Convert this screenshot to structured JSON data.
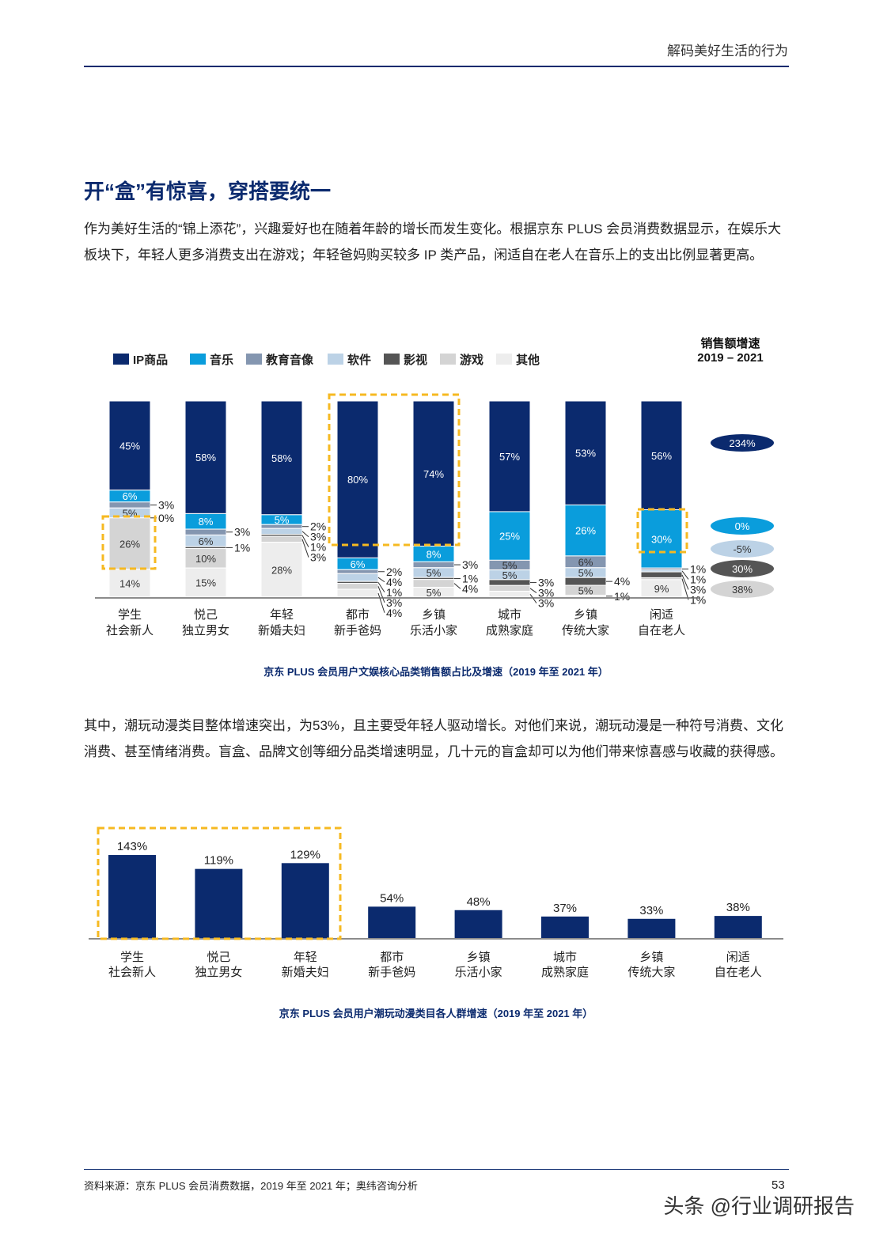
{
  "header": {
    "section": "解码美好生活的行为"
  },
  "title": "开“盒”有惊喜，穿搭要统一",
  "paragraph1": "作为美好生活的“锦上添花”，兴趣爱好也在随着年龄的增长而发生变化。根据京东 PLUS 会员消费数据显示，在娱乐大板块下，年轻人更多消费支出在游戏；年轻爸妈购买较多 IP 类产品，闲适自在老人在音乐上的支出比例显著更高。",
  "paragraph2": "其中，潮玩动漫类目整体增速突出，为53%，且主要受年轻人驱动增长。对他们来说，潮玩动漫是一种符号消费、文化消费、甚至情绪消费。盲盒、品牌文创等细分品类增速明显，几十元的盲盒却可以为他们带来惊喜感与收藏的获得感。",
  "chart_data": [
    {
      "type": "bar",
      "stacked": true,
      "title": "京东 PLUS 会员用户文娱核心品类销售额占比及增速（2019 年至 2021 年）",
      "categories": [
        [
          "学生",
          "社会新人"
        ],
        [
          "悦己",
          "独立男女"
        ],
        [
          "年轻",
          "新婚夫妇"
        ],
        [
          "都市",
          "新手爸妈"
        ],
        [
          "乡镇",
          "乐活小家"
        ],
        [
          "城市",
          "成熟家庭"
        ],
        [
          "乡镇",
          "传统大家"
        ],
        [
          "闲适",
          "自在老人"
        ]
      ],
      "series": [
        {
          "name": "IP商品",
          "color": "#0b2a6e",
          "values": [
            45,
            58,
            58,
            80,
            74,
            57,
            53,
            56
          ]
        },
        {
          "name": "音乐",
          "color": "#0a9ddc",
          "values": [
            6,
            8,
            5,
            6,
            8,
            25,
            26,
            30
          ]
        },
        {
          "name": "教育音像",
          "color": "#8496b0",
          "values": [
            3,
            3,
            2,
            2,
            3,
            5,
            6,
            1
          ]
        },
        {
          "name": "软件",
          "color": "#bcd2e6",
          "values": [
            5,
            6,
            3,
            4,
            5,
            5,
            5,
            1
          ]
        },
        {
          "name": "影视",
          "color": "#555555",
          "values": [
            0,
            1,
            1,
            1,
            1,
            3,
            4,
            3
          ]
        },
        {
          "name": "游戏",
          "color": "#d4d4d4",
          "values": [
            26,
            10,
            3,
            3,
            4,
            3,
            5,
            1
          ]
        },
        {
          "name": "其他",
          "color": "#ededed",
          "values": [
            14,
            15,
            28,
            4,
            5,
            3,
            1,
            9
          ]
        }
      ],
      "growth_title": [
        "销售额增速",
        "2019 – 2021"
      ],
      "growth": [
        {
          "label": "234%",
          "color": "#0b2a6e",
          "text": "#ffffff"
        },
        {
          "label": "0%",
          "color": "#0a9ddc",
          "text": "#ffffff"
        },
        {
          "label": "-5%",
          "color": "#bcd2e6",
          "text": "#333333"
        },
        {
          "label": "30%",
          "color": "#555555",
          "text": "#ffffff"
        },
        {
          "label": "38%",
          "color": "#d4d4d4",
          "text": "#333333"
        }
      ],
      "legend": "top-left",
      "highlights": "dashed-yellow"
    },
    {
      "type": "bar",
      "title": "京东 PLUS 会员用户潮玩动漫类目各人群增速（2019 年至 2021 年）",
      "categories": [
        [
          "学生",
          "社会新人"
        ],
        [
          "悦己",
          "独立男女"
        ],
        [
          "年轻",
          "新婚夫妇"
        ],
        [
          "都市",
          "新手爸妈"
        ],
        [
          "乡镇",
          "乐活小家"
        ],
        [
          "城市",
          "成熟家庭"
        ],
        [
          "乡镇",
          "传统大家"
        ],
        [
          "闲适",
          "自在老人"
        ]
      ],
      "values": [
        143,
        119,
        129,
        54,
        48,
        37,
        33,
        38
      ],
      "value_labels": [
        "143%",
        "119%",
        "129%",
        "54%",
        "48%",
        "37%",
        "33%",
        "38%"
      ],
      "color": "#0b2a6e",
      "highlight_color": "#f6b921"
    }
  ],
  "footer": {
    "source": "资料来源：京东 PLUS 会员消费数据，2019 年至 2021 年；奥纬咨询分析",
    "page": "53",
    "watermark": "头条 @行业调研报告"
  }
}
